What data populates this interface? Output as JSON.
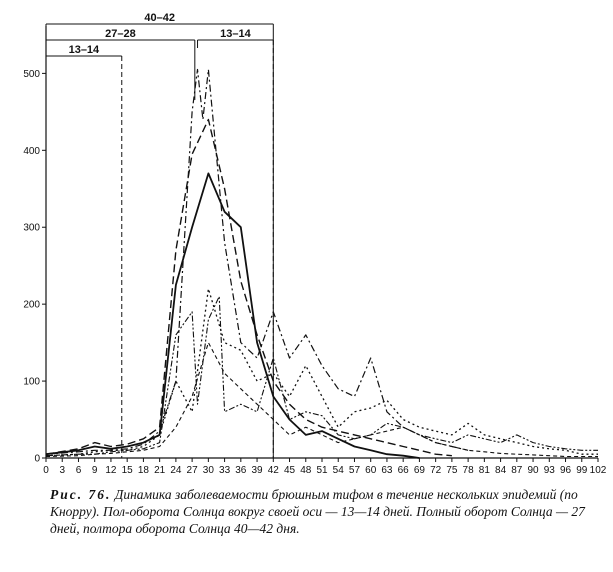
{
  "chart_data": {
    "type": "line",
    "title": "",
    "xlabel": "",
    "ylabel": "",
    "ylim": [
      0,
      520
    ],
    "xlim": [
      0,
      102
    ],
    "yticks": [
      0,
      100,
      200,
      300,
      400,
      500
    ],
    "xticks": [
      0,
      3,
      6,
      9,
      12,
      15,
      18,
      21,
      24,
      27,
      30,
      33,
      36,
      39,
      42,
      45,
      48,
      51,
      54,
      57,
      60,
      63,
      66,
      69,
      72,
      75,
      78,
      81,
      84,
      87,
      90,
      93,
      96,
      99,
      102
    ],
    "x_tick_labels": [
      "0",
      "3",
      "6",
      "9",
      "12",
      "15",
      "18",
      "21",
      "24",
      "27",
      "30",
      "33",
      "36",
      "39",
      "42",
      "45",
      "48",
      "51",
      "54",
      "57",
      "60",
      "63",
      "66",
      "69",
      "72",
      "75",
      "78",
      "81",
      "84",
      "87",
      "90",
      "93",
      "96",
      "99",
      "102"
    ],
    "grid": false,
    "legend": "none",
    "brackets": [
      {
        "label": "40–42",
        "start": 0,
        "end": 42
      },
      {
        "label": "27–28",
        "start": 0,
        "end": 27.5
      },
      {
        "label": "13–14",
        "start": 0,
        "end": 14
      },
      {
        "label": "13–14",
        "start": 28,
        "end": 42
      }
    ],
    "series": [
      {
        "dash": "solid",
        "width": 1.8,
        "points": [
          [
            0,
            5
          ],
          [
            6,
            10
          ],
          [
            9,
            15
          ],
          [
            12,
            12
          ],
          [
            15,
            15
          ],
          [
            18,
            20
          ],
          [
            21,
            30
          ],
          [
            24,
            225
          ],
          [
            27,
            300
          ],
          [
            30,
            370
          ],
          [
            33,
            320
          ],
          [
            36,
            300
          ],
          [
            39,
            150
          ],
          [
            42,
            80
          ],
          [
            45,
            50
          ],
          [
            48,
            30
          ],
          [
            51,
            35
          ],
          [
            54,
            25
          ],
          [
            57,
            15
          ],
          [
            60,
            10
          ],
          [
            63,
            5
          ],
          [
            66,
            3
          ],
          [
            69,
            0
          ]
        ]
      },
      {
        "dash": "8,4",
        "width": 1.4,
        "points": [
          [
            0,
            5
          ],
          [
            6,
            12
          ],
          [
            9,
            20
          ],
          [
            12,
            15
          ],
          [
            15,
            18
          ],
          [
            18,
            25
          ],
          [
            21,
            40
          ],
          [
            24,
            270
          ],
          [
            27,
            395
          ],
          [
            30,
            440
          ],
          [
            33,
            350
          ],
          [
            36,
            230
          ],
          [
            39,
            160
          ],
          [
            42,
            100
          ],
          [
            45,
            70
          ],
          [
            48,
            50
          ],
          [
            51,
            40
          ],
          [
            54,
            35
          ],
          [
            57,
            30
          ],
          [
            60,
            25
          ],
          [
            63,
            20
          ],
          [
            66,
            15
          ],
          [
            69,
            10
          ],
          [
            72,
            5
          ],
          [
            75,
            3
          ]
        ]
      },
      {
        "dash": "7,3,2,3",
        "width": 1.2,
        "points": [
          [
            0,
            5
          ],
          [
            6,
            8
          ],
          [
            9,
            10
          ],
          [
            12,
            10
          ],
          [
            15,
            12
          ],
          [
            18,
            18
          ],
          [
            21,
            35
          ],
          [
            24,
            100
          ],
          [
            27,
            450
          ],
          [
            28,
            505
          ],
          [
            29,
            440
          ],
          [
            30,
            505
          ],
          [
            33,
            280
          ],
          [
            36,
            150
          ],
          [
            39,
            130
          ],
          [
            42,
            190
          ],
          [
            45,
            130
          ],
          [
            48,
            160
          ],
          [
            51,
            120
          ],
          [
            54,
            90
          ],
          [
            57,
            80
          ],
          [
            60,
            130
          ],
          [
            63,
            60
          ],
          [
            66,
            40
          ],
          [
            69,
            30
          ],
          [
            72,
            20
          ],
          [
            75,
            15
          ],
          [
            78,
            10
          ]
        ]
      },
      {
        "dash": "2,3",
        "width": 1.3,
        "points": [
          [
            0,
            3
          ],
          [
            6,
            5
          ],
          [
            9,
            8
          ],
          [
            12,
            10
          ],
          [
            15,
            10
          ],
          [
            18,
            15
          ],
          [
            21,
            30
          ],
          [
            24,
            100
          ],
          [
            27,
            60
          ],
          [
            30,
            220
          ],
          [
            33,
            150
          ],
          [
            36,
            140
          ],
          [
            39,
            100
          ],
          [
            42,
            110
          ],
          [
            45,
            80
          ],
          [
            48,
            120
          ],
          [
            51,
            80
          ],
          [
            54,
            40
          ],
          [
            57,
            60
          ],
          [
            60,
            65
          ],
          [
            63,
            75
          ],
          [
            66,
            50
          ],
          [
            69,
            40
          ],
          [
            72,
            35
          ],
          [
            75,
            30
          ],
          [
            78,
            45
          ],
          [
            81,
            30
          ],
          [
            84,
            25
          ],
          [
            87,
            20
          ],
          [
            90,
            15
          ],
          [
            93,
            12
          ],
          [
            96,
            10
          ],
          [
            99,
            5
          ],
          [
            102,
            5
          ]
        ]
      },
      {
        "dash": "6,2,2,2,2,2",
        "width": 1.1,
        "points": [
          [
            0,
            3
          ],
          [
            6,
            5
          ],
          [
            9,
            5
          ],
          [
            12,
            8
          ],
          [
            15,
            10
          ],
          [
            18,
            12
          ],
          [
            21,
            20
          ],
          [
            24,
            160
          ],
          [
            27,
            190
          ],
          [
            28,
            70
          ],
          [
            30,
            180
          ],
          [
            32,
            210
          ],
          [
            33,
            60
          ],
          [
            36,
            70
          ],
          [
            39,
            60
          ],
          [
            42,
            130
          ],
          [
            45,
            50
          ],
          [
            48,
            60
          ],
          [
            51,
            55
          ],
          [
            54,
            30
          ],
          [
            57,
            25
          ],
          [
            60,
            30
          ],
          [
            63,
            45
          ],
          [
            66,
            40
          ],
          [
            69,
            30
          ],
          [
            72,
            25
          ],
          [
            75,
            20
          ],
          [
            78,
            30
          ],
          [
            81,
            25
          ],
          [
            84,
            20
          ],
          [
            87,
            30
          ],
          [
            90,
            20
          ],
          [
            93,
            15
          ],
          [
            96,
            12
          ],
          [
            99,
            10
          ],
          [
            102,
            10
          ]
        ]
      },
      {
        "dash": "4,3",
        "width": 1.1,
        "points": [
          [
            0,
            2
          ],
          [
            6,
            3
          ],
          [
            9,
            5
          ],
          [
            12,
            6
          ],
          [
            15,
            8
          ],
          [
            18,
            10
          ],
          [
            21,
            15
          ],
          [
            24,
            40
          ],
          [
            27,
            80
          ],
          [
            30,
            150
          ],
          [
            33,
            110
          ],
          [
            36,
            90
          ],
          [
            39,
            70
          ],
          [
            42,
            50
          ],
          [
            45,
            30
          ],
          [
            48,
            40
          ],
          [
            51,
            30
          ],
          [
            54,
            20
          ],
          [
            57,
            25
          ],
          [
            60,
            30
          ],
          [
            63,
            35
          ],
          [
            66,
            40
          ],
          [
            69,
            30
          ],
          [
            72,
            20
          ],
          [
            75,
            15
          ],
          [
            78,
            10
          ],
          [
            81,
            8
          ],
          [
            84,
            6
          ],
          [
            87,
            5
          ],
          [
            90,
            4
          ],
          [
            93,
            3
          ],
          [
            96,
            2
          ],
          [
            99,
            2
          ],
          [
            102,
            2
          ]
        ]
      }
    ]
  },
  "caption": {
    "figure_label": "Рис. 76.",
    "text": "Динамика заболеваемости брюшным тифом в течение нескольких эпидемий (по Кнорру). Пол-оборота Солнца вокруг своей оси — 13—14 дней. Полный оборот Солнца — 27 дней, полтора оборота Солнца 40—42 дня."
  }
}
